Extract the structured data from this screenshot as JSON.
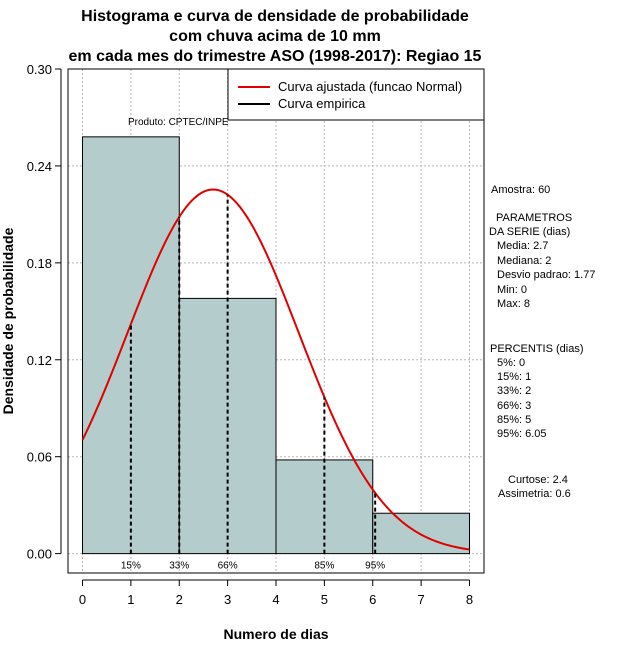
{
  "chart_data": {
    "type": "bar",
    "title_lines": [
      "Histograma e curva de densidade de probabilidade",
      "com chuva acima de 10 mm",
      "em cada mes do trimestre ASO (1998-2017): Regiao 15"
    ],
    "xlabel": "Numero de dias",
    "ylabel": "Densidade de probabilidade",
    "xlim": [
      -0.3,
      8.3
    ],
    "ylim": [
      -0.012,
      0.3
    ],
    "x_ticks": [
      "0",
      "1",
      "2",
      "3",
      "4",
      "5",
      "6",
      "7",
      "8"
    ],
    "y_ticks": [
      "0.00",
      "0.06",
      "0.12",
      "0.18",
      "0.24",
      "0.30"
    ],
    "bars": [
      {
        "x0": 0,
        "x1": 2,
        "density": 0.258
      },
      {
        "x0": 2,
        "x1": 4,
        "density": 0.158
      },
      {
        "x0": 4,
        "x1": 6,
        "density": 0.058
      },
      {
        "x0": 6,
        "x1": 8,
        "density": 0.025
      }
    ],
    "bar_color": "#b5cccc",
    "curve_color": "#e00000",
    "normal_curve": {
      "mean": 2.7,
      "sd": 1.77,
      "x_from": 0,
      "x_to": 8
    },
    "percentile_lines": [
      {
        "x": 1,
        "label": "15%"
      },
      {
        "x": 2,
        "label": "33%"
      },
      {
        "x": 3,
        "label": "66%"
      },
      {
        "x": 5,
        "label": "85%"
      },
      {
        "x": 6.05,
        "label": "95%"
      }
    ],
    "legend": [
      {
        "label": "Curva ajustada (funcao Normal)",
        "color": "#e00000"
      },
      {
        "label": "Curva empirica",
        "color": "#000000"
      }
    ],
    "product_label": "Produto: CPTEC/INPE",
    "side_text": {
      "amostra": "Amostra: 60",
      "parametros_title_1": "PARAMETROS",
      "parametros_title_2": "DA SERIE (dias)",
      "media": "Media: 2.7",
      "mediana": "Mediana: 2",
      "desvio": "Desvio padrao: 1.77",
      "min": "Min: 0",
      "max": "Max: 8",
      "percentis_title": "PERCENTIS (dias)",
      "p5": "5%: 0",
      "p15": "15%: 1",
      "p33": "33%: 2",
      "p66": "66%: 3",
      "p85": "85%: 5",
      "p95": "95%: 6.05",
      "curtose": "Curtose: 2.4",
      "assimetria": "Assimetria: 0.6"
    }
  }
}
